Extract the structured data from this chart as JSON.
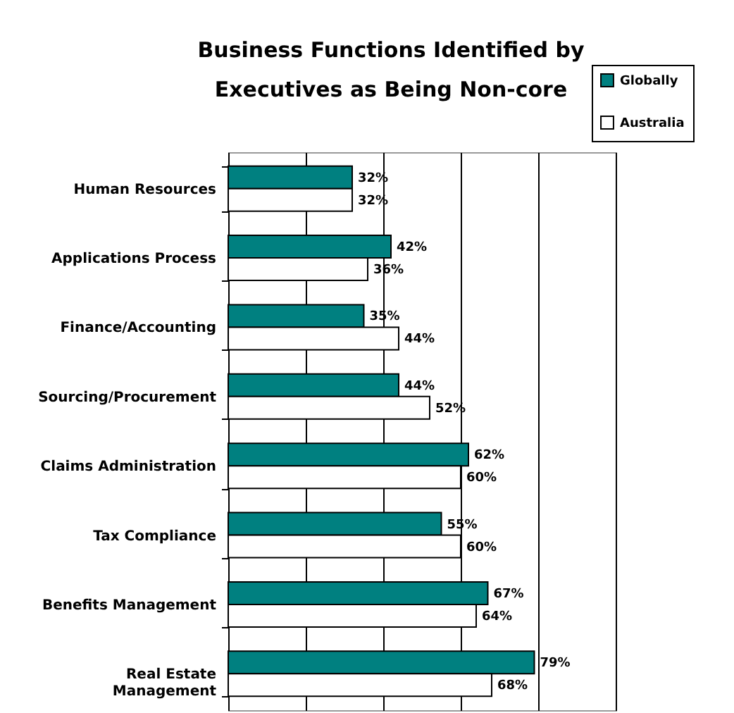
{
  "chart_data": {
    "type": "bar",
    "orientation": "horizontal",
    "title": "Business Functions Identified by Executives as Being Non-core",
    "categories": [
      "Human Resources",
      "Applications Process",
      "Finance/Accounting",
      "Sourcing/Procurement",
      "Claims Administration",
      "Tax Compliance",
      "Benefits Management",
      "Real Estate Management"
    ],
    "series": [
      {
        "name": "Globally",
        "color": "#008080",
        "values": [
          32,
          42,
          35,
          44,
          62,
          55,
          67,
          79
        ],
        "value_labels": [
          "32%",
          "42%",
          "35%",
          "44%",
          "62%",
          "55%",
          "67%",
          "79%"
        ]
      },
      {
        "name": "Australia",
        "color": "#ffffff",
        "values": [
          32,
          36,
          44,
          52,
          60,
          60,
          64,
          68
        ],
        "value_labels": [
          "32%",
          "36%",
          "44%",
          "52%",
          "60%",
          "60%",
          "64%",
          "68%"
        ]
      }
    ],
    "xlim": [
      0,
      100
    ],
    "xticks": [
      {
        "value": 0,
        "label": null
      },
      {
        "value": 20,
        "label": null
      },
      {
        "value": 40,
        "label": null
      },
      {
        "value": 60,
        "label": null
      },
      {
        "value": 80,
        "label": null
      },
      {
        "value": 100,
        "label": null
      }
    ],
    "tick_labels": "y",
    "grid": "x",
    "legend": "top right"
  }
}
